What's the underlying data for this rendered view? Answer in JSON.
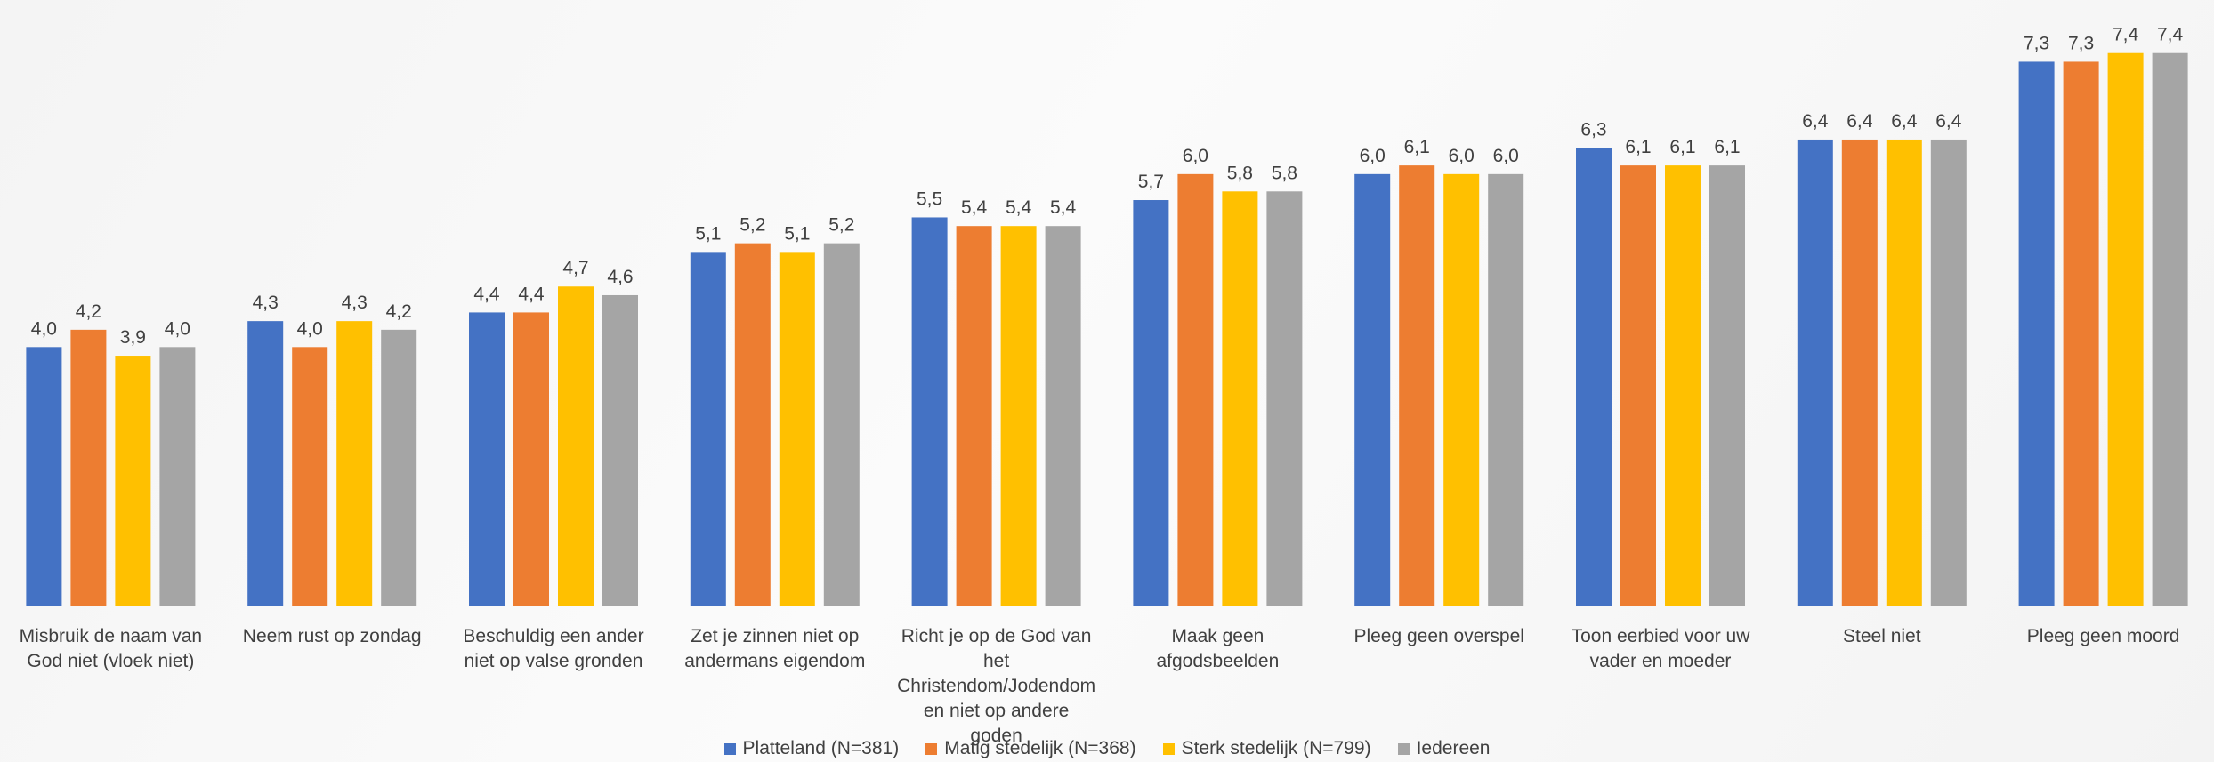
{
  "chart_data": {
    "type": "bar",
    "categories": [
      "Misbruik de naam van God niet (vloek niet)",
      "Neem rust op zondag",
      "Beschuldig een ander niet op valse gronden",
      "Zet je zinnen niet op andermans eigendom",
      "Richt je op de God van het Christendom/Jodendom en niet op andere goden",
      "Maak geen afgodsbeelden",
      "Pleeg geen overspel",
      "Toon eerbied voor uw vader en moeder",
      "Steel niet",
      "Pleeg geen moord"
    ],
    "series": [
      {
        "name": "Platteland (N=381)",
        "color": "#4472c4",
        "values": [
          4.0,
          4.3,
          4.4,
          5.1,
          5.5,
          5.7,
          6.0,
          6.3,
          6.4,
          7.3
        ],
        "value_labels": [
          "4,0",
          "4,3",
          "4,4",
          "5,1",
          "5,5",
          "5,7",
          "6,0",
          "6,3",
          "6,4",
          "7,3"
        ]
      },
      {
        "name": "Matig stedelijk (N=368)",
        "color": "#ed7d31",
        "values": [
          4.2,
          4.0,
          4.4,
          5.2,
          5.4,
          6.0,
          6.1,
          6.1,
          6.4,
          7.3
        ],
        "value_labels": [
          "4,2",
          "4,0",
          "4,4",
          "5,2",
          "5,4",
          "6,0",
          "6,1",
          "6,1",
          "6,4",
          "7,3"
        ]
      },
      {
        "name": "Sterk stedelijk (N=799)",
        "color": "#ffc000",
        "values": [
          3.9,
          4.3,
          4.7,
          5.1,
          5.4,
          5.8,
          6.0,
          6.1,
          6.4,
          7.4
        ],
        "value_labels": [
          "3,9",
          "4,3",
          "4,7",
          "5,1",
          "5,4",
          "5,8",
          "6,0",
          "6,1",
          "6,4",
          "7,4"
        ]
      },
      {
        "name": "Iedereen",
        "color": "#a5a5a5",
        "values": [
          4.0,
          4.2,
          4.6,
          5.2,
          5.4,
          5.8,
          6.0,
          6.1,
          6.4,
          7.4
        ],
        "value_labels": [
          "4,0",
          "4,2",
          "4,6",
          "5,2",
          "5,4",
          "5,8",
          "6,0",
          "6,1",
          "6,4",
          "7,4"
        ]
      }
    ],
    "ylim": [
      1,
      7.5
    ],
    "legend": "bottom"
  }
}
